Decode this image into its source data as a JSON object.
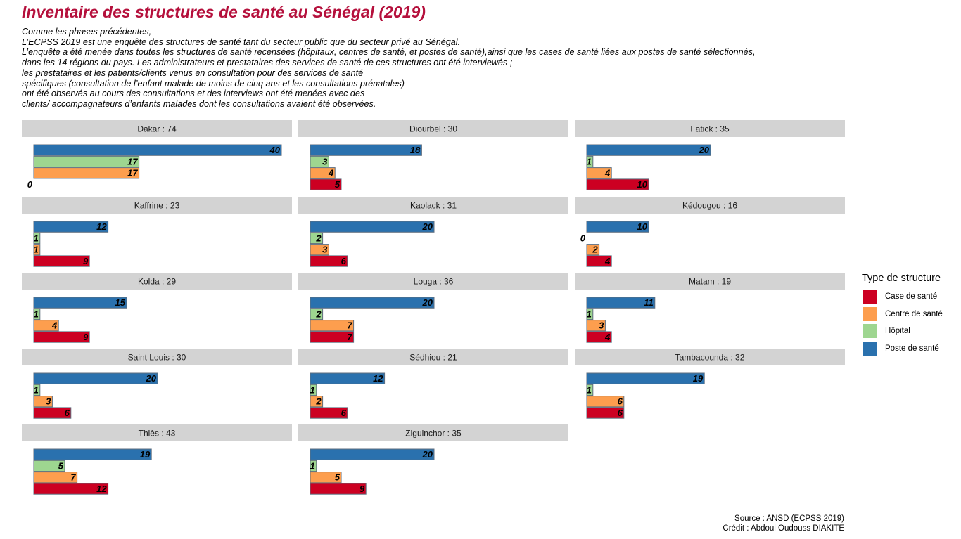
{
  "title": "Inventaire des structures de santé au Sénégal (2019)",
  "subtitle_lines": [
    "Comme les phases précédentes,",
    "L’ECPSS 2019 est une enquête des structures de santé tant du secteur public que du secteur privé au Sénégal.",
    "L’enquête a été menée dans toutes les structures de santé recensées (hôpitaux, centres de santé, et postes de santé),ainsi que les cases de santé liées aux postes de santé sélectionnés,",
    "dans les 14 régions du pays. Les administrateurs et prestataires des services de santé de ces structures ont été interviewés ;",
    "les prestataires et les patients/clients venus en consultation pour des services de santé",
    "spécifiques (consultation de l’enfant malade de moins de cinq ans et les consultations prénatales)",
    "ont été observés au cours des consultations et des interviews ont été menées avec des",
    "clients/ accompagnateurs d’enfants malades dont les consultations avaient été observées."
  ],
  "caption": {
    "source": "Source : ANSD (ECPSS 2019)",
    "credit": "Crédit : Abdoul Oudouss DIAKITE"
  },
  "colors": {
    "Case de santé": "#cc0022",
    "Centre de santé": "#fd9e4e",
    "Hôpital": "#9ed690",
    "Poste de santé": "#2a71ae",
    "strip": "#d3d3d3",
    "bar_outline": "#5f6e7f"
  },
  "chart_data": {
    "type": "bar",
    "orientation": "horizontal",
    "facet": "region",
    "xlim": [
      0,
      40
    ],
    "legend": {
      "title": "Type de structure",
      "placement": "right",
      "entries": [
        "Case de santé",
        "Centre de santé",
        "Hôpital",
        "Poste de santé"
      ]
    },
    "series_order_top_to_bottom": [
      "Poste de santé",
      "Hôpital",
      "Centre de santé",
      "Case de santé"
    ],
    "facets": [
      {
        "label": "Dakar : 74",
        "values": {
          "Poste de santé": 40,
          "Hôpital": 17,
          "Centre de santé": 17,
          "Case de santé": 0
        }
      },
      {
        "label": "Diourbel : 30",
        "values": {
          "Poste de santé": 18,
          "Hôpital": 3,
          "Centre de santé": 4,
          "Case de santé": 5
        }
      },
      {
        "label": "Fatick : 35",
        "values": {
          "Poste de santé": 20,
          "Hôpital": 1,
          "Centre de santé": 4,
          "Case de santé": 10
        }
      },
      {
        "label": "Kaffrine : 23",
        "values": {
          "Poste de santé": 12,
          "Hôpital": 1,
          "Centre de santé": 1,
          "Case de santé": 9
        }
      },
      {
        "label": "Kaolack : 31",
        "values": {
          "Poste de santé": 20,
          "Hôpital": 2,
          "Centre de santé": 3,
          "Case de santé": 6
        }
      },
      {
        "label": "Kédougou : 16",
        "values": {
          "Poste de santé": 10,
          "Hôpital": 0,
          "Centre de santé": 2,
          "Case de santé": 4
        }
      },
      {
        "label": "Kolda : 29",
        "values": {
          "Poste de santé": 15,
          "Hôpital": 1,
          "Centre de santé": 4,
          "Case de santé": 9
        }
      },
      {
        "label": "Louga : 36",
        "values": {
          "Poste de santé": 20,
          "Hôpital": 2,
          "Centre de santé": 7,
          "Case de santé": 7
        }
      },
      {
        "label": "Matam : 19",
        "values": {
          "Poste de santé": 11,
          "Hôpital": 1,
          "Centre de santé": 3,
          "Case de santé": 4
        }
      },
      {
        "label": "Saint Louis : 30",
        "values": {
          "Poste de santé": 20,
          "Hôpital": 1,
          "Centre de santé": 3,
          "Case de santé": 6
        }
      },
      {
        "label": "Sédhiou : 21",
        "values": {
          "Poste de santé": 12,
          "Hôpital": 1,
          "Centre de santé": 2,
          "Case de santé": 6
        }
      },
      {
        "label": "Tambacounda : 32",
        "values": {
          "Poste de santé": 19,
          "Hôpital": 1,
          "Centre de santé": 6,
          "Case de santé": 6
        }
      },
      {
        "label": "Thiès : 43",
        "values": {
          "Poste de santé": 19,
          "Hôpital": 5,
          "Centre de santé": 7,
          "Case de santé": 12
        }
      },
      {
        "label": "Ziguinchor : 35",
        "values": {
          "Poste de santé": 20,
          "Hôpital": 1,
          "Centre de santé": 5,
          "Case de santé": 9
        }
      }
    ]
  }
}
